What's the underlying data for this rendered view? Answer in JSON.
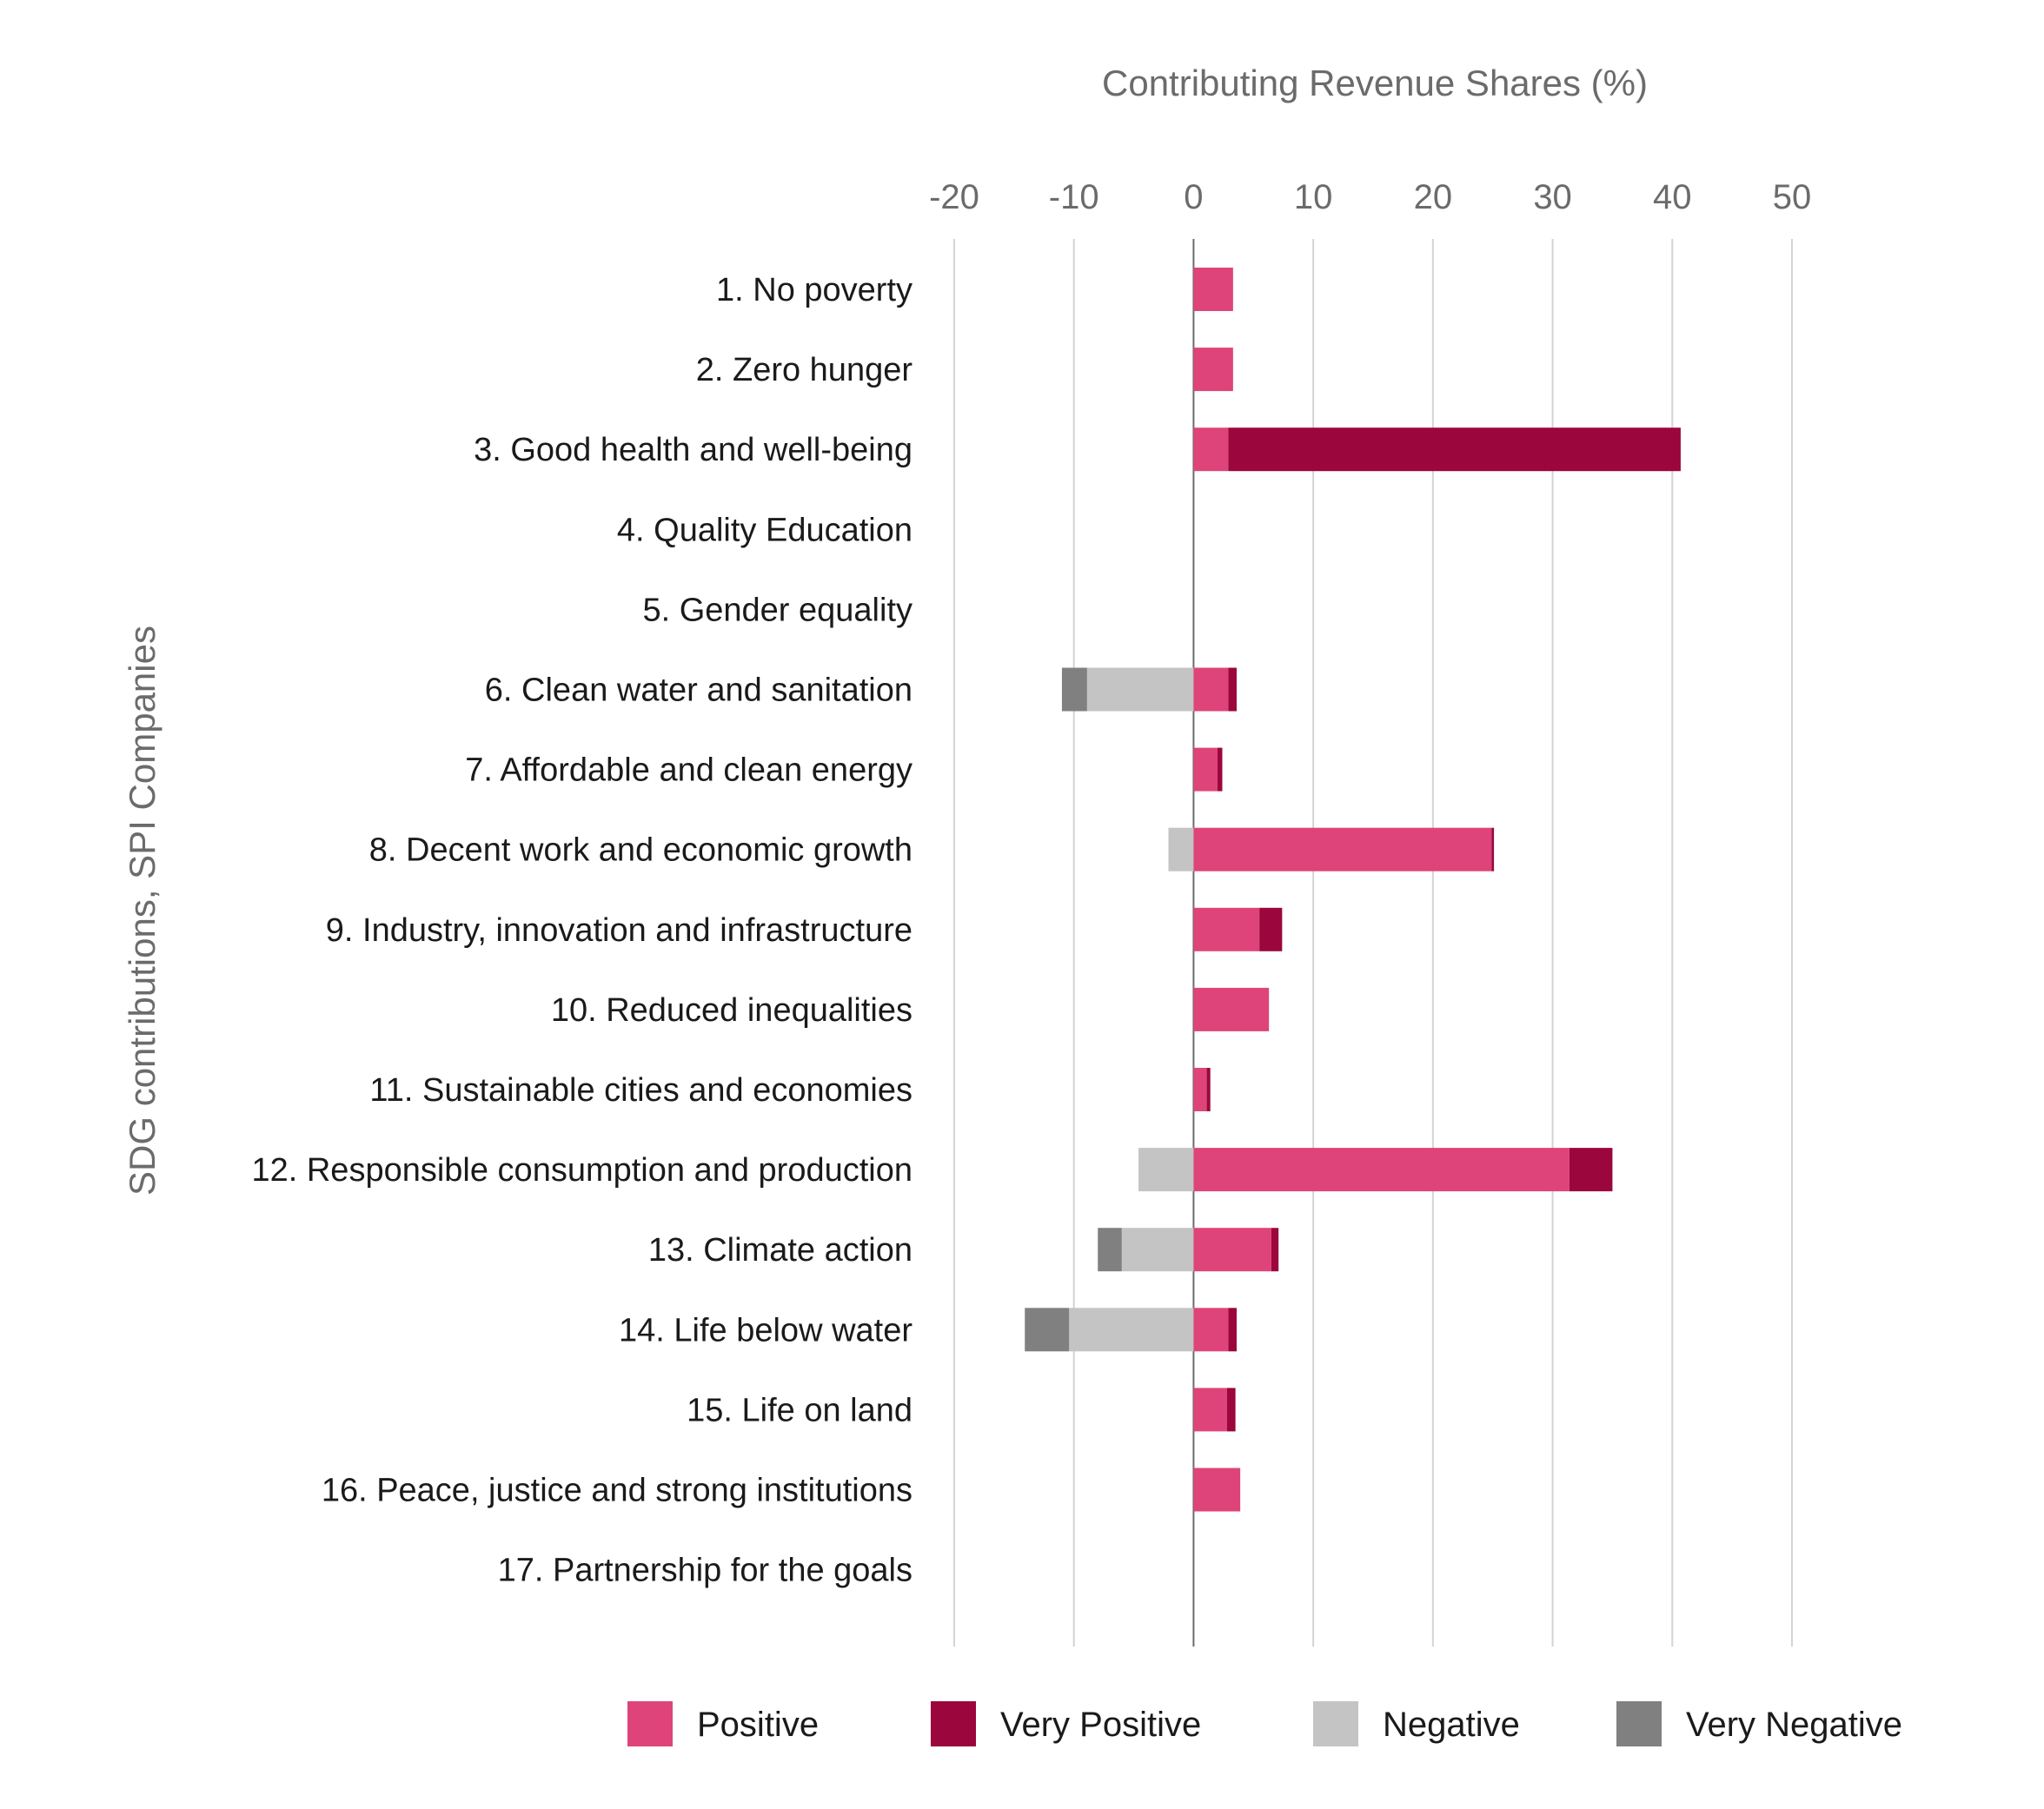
{
  "chart_data": {
    "type": "bar",
    "orientation": "horizontal",
    "stacked": true,
    "xlabel": "Contributing Revenue Shares (%)",
    "ylabel": "SDG contributions, SPI Companies",
    "xlim": [
      -20,
      50
    ],
    "xticks": [
      -20,
      -10,
      0,
      10,
      20,
      30,
      40,
      50
    ],
    "grid": true,
    "legend_position": "bottom",
    "categories": [
      "1. No poverty",
      "2. Zero hunger",
      "3. Good health and well-being",
      "4. Quality Education",
      "5. Gender equality",
      "6. Clean water and sanitation",
      "7. Affordable and clean energy",
      "8. Decent work and economic growth",
      "9. Industry, innovation and infrastructure",
      "10. Reduced inequalities",
      "11. Sustainable cities and economies",
      "12. Responsible consumption and production",
      "13. Climate action",
      "14. Life below water",
      "15. Life on land",
      "16. Peace, justice and strong institutions",
      "17. Partnership for the goals"
    ],
    "series": [
      {
        "name": "Positive",
        "color": "#de4479",
        "values": [
          3.3,
          3.3,
          2.9,
          0,
          0,
          2.9,
          2.0,
          24.9,
          5.5,
          6.3,
          1.1,
          31.4,
          6.5,
          2.9,
          2.8,
          3.9,
          0
        ]
      },
      {
        "name": "Very Positive",
        "color": "#9b063d",
        "values": [
          0,
          0,
          37.8,
          0,
          0,
          0.7,
          0.4,
          0.2,
          1.9,
          0,
          0.3,
          3.6,
          0.6,
          0.7,
          0.7,
          0,
          0
        ]
      },
      {
        "name": "Negative",
        "color": "#c4c4c4",
        "values": [
          0,
          0,
          0,
          0,
          0,
          -8.9,
          0,
          -2.1,
          0,
          0,
          0,
          -4.6,
          -6.0,
          -10.4,
          0,
          0,
          0
        ]
      },
      {
        "name": "Very Negative",
        "color": "#808080",
        "values": [
          0,
          0,
          0,
          0,
          0,
          -2.1,
          0,
          0,
          0,
          0,
          0,
          0,
          -2.0,
          -3.7,
          0,
          0,
          0
        ]
      }
    ]
  }
}
